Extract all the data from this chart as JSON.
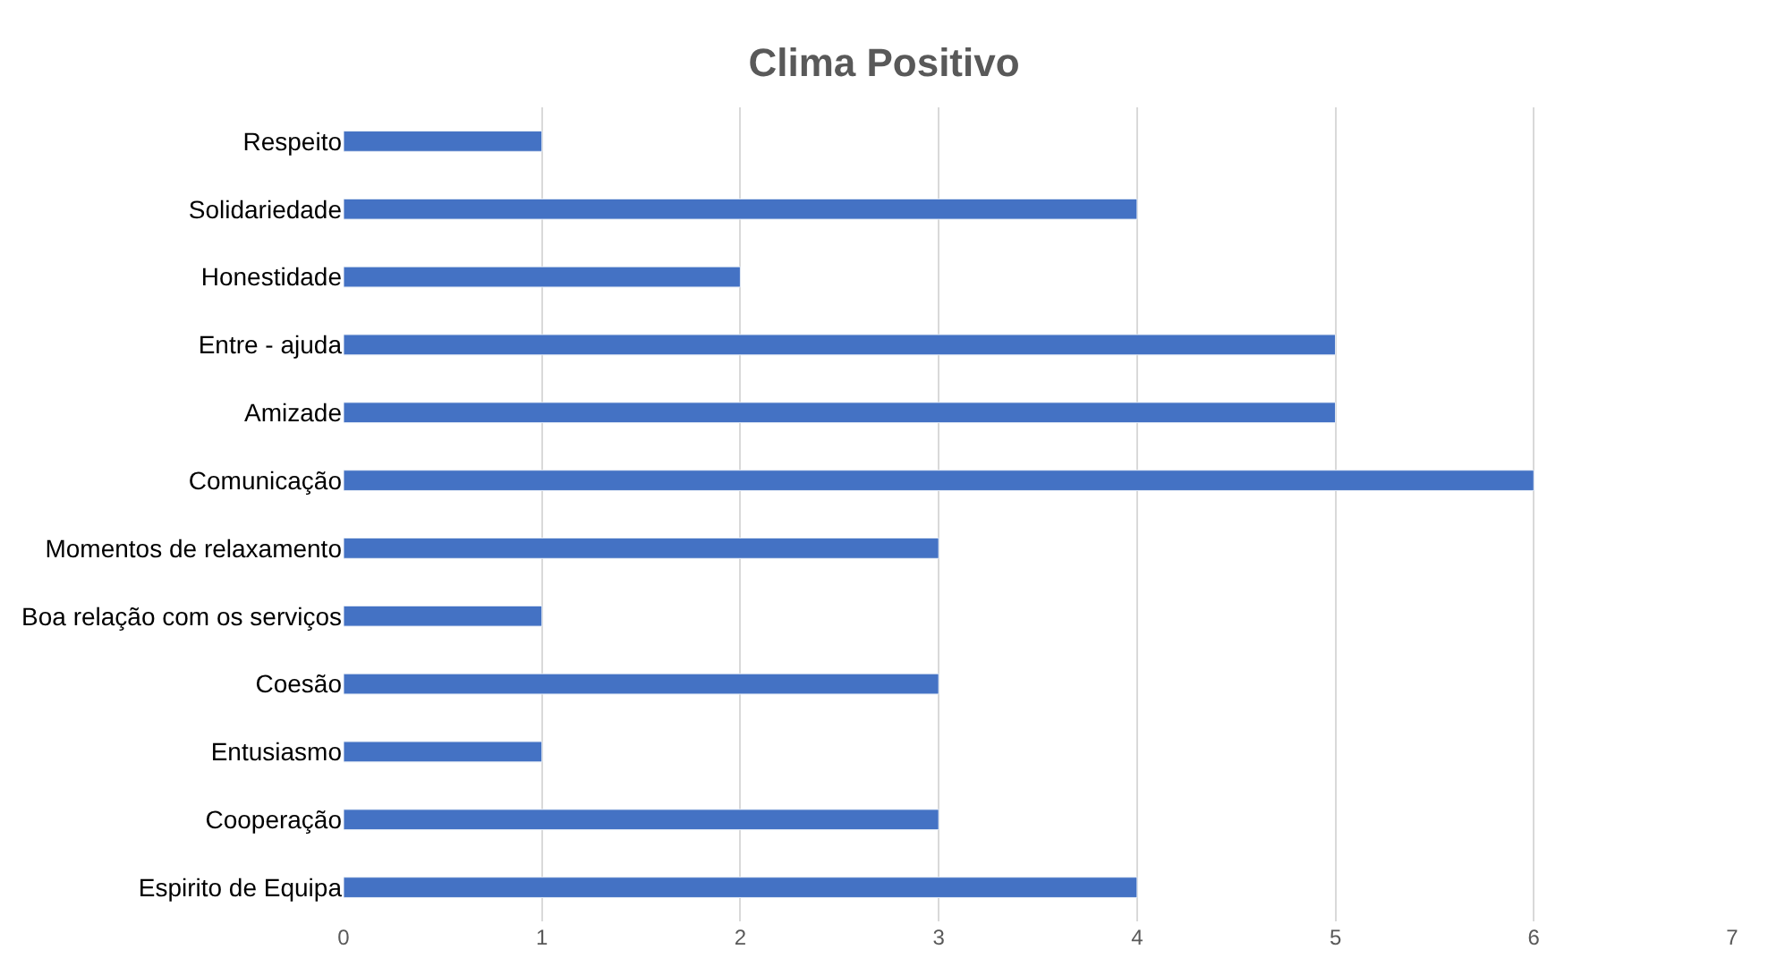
{
  "chart_data": {
    "type": "bar",
    "orientation": "horizontal",
    "title": "Clima Positivo",
    "categories": [
      "Respeito",
      "Solidariedade",
      "Honestidade",
      "Entre - ajuda",
      "Amizade",
      "Comunicação",
      "Momentos de relaxamento",
      "Boa relação com os serviços",
      "Coesão",
      "Entusiasmo",
      "Cooperação",
      "Espirito de Equipa"
    ],
    "values": [
      1,
      4,
      2,
      5,
      5,
      6,
      3,
      1,
      3,
      1,
      3,
      4
    ],
    "color": "#4472c4",
    "xlim": [
      0,
      7
    ],
    "xticks": [
      0,
      1,
      2,
      3,
      4,
      5,
      6,
      7
    ],
    "grid": "x"
  }
}
